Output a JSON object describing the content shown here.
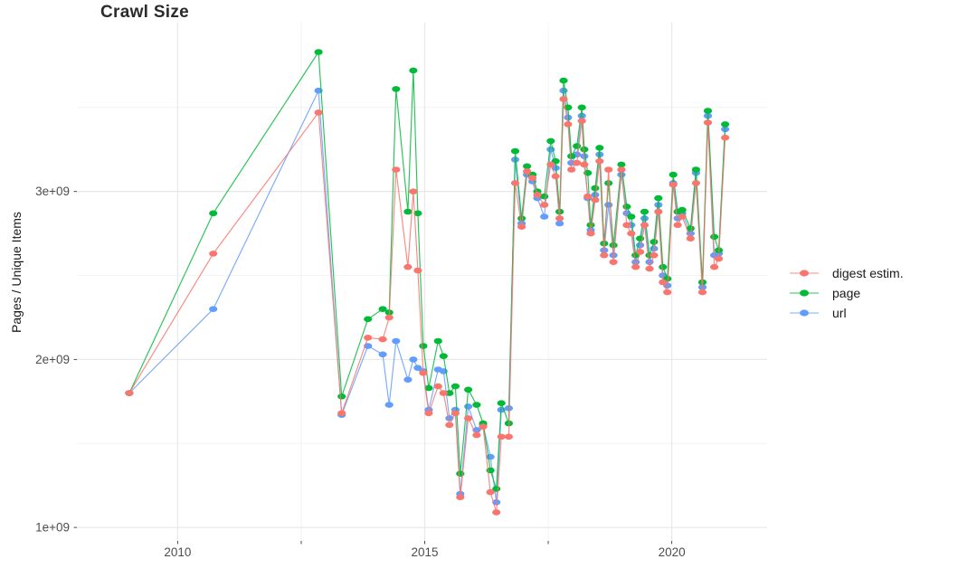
{
  "title": "Crawl Size",
  "legend": {
    "items": [
      {
        "key": "digest",
        "label": "digest estim.",
        "color": "#F8766D"
      },
      {
        "key": "page",
        "label": "page",
        "color": "#00BA38"
      },
      {
        "key": "url",
        "label": "url",
        "color": "#619CFF"
      }
    ]
  },
  "colors": {
    "digest": "#F8766D",
    "page": "#00BA38",
    "url": "#619CFF",
    "grid_major": "#e9e9e9",
    "grid_minor": "#f0f0f0",
    "tick_mark": "#4d4d4d",
    "tick_text": "#4d4d4d",
    "title_text": "#2b2b2b"
  },
  "chart_data": {
    "type": "line",
    "title": "Crawl Size",
    "xlabel": "",
    "ylabel": "Pages / Unique Items",
    "legend_position": "right",
    "grid": "on",
    "unit": "billions (value shown as Ne+09)",
    "xlim": [
      2007.96,
      2021.93
    ],
    "ylim_billions": [
      0.92,
      4.005
    ],
    "x_ticks": [
      {
        "v": 2010,
        "label": "2010"
      },
      {
        "v": 2015,
        "label": "2015"
      },
      {
        "v": 2020,
        "label": "2020"
      }
    ],
    "x_minor": [
      2012.5,
      2017.5
    ],
    "y_ticks": [
      {
        "v": 1,
        "label": "1e+09"
      },
      {
        "v": 2,
        "label": "2e+09"
      },
      {
        "v": 3,
        "label": "3e+09"
      }
    ],
    "y_minor": [
      1.5,
      2.5,
      3.5
    ],
    "draw_order": [
      "url",
      "page",
      "digest"
    ],
    "x": [
      2009.02,
      2010.72,
      2012.85,
      2013.32,
      2013.85,
      2014.15,
      2014.28,
      2014.42,
      2014.66,
      2014.77,
      2014.86,
      2014.97,
      2015.08,
      2015.27,
      2015.38,
      2015.5,
      2015.62,
      2015.72,
      2015.88,
      2016.05,
      2016.18,
      2016.33,
      2016.45,
      2016.55,
      2016.7,
      2016.83,
      2016.96,
      2017.07,
      2017.18,
      2017.28,
      2017.42,
      2017.55,
      2017.65,
      2017.73,
      2017.81,
      2017.9,
      2017.97,
      2018.08,
      2018.18,
      2018.23,
      2018.3,
      2018.36,
      2018.45,
      2018.54,
      2018.63,
      2018.72,
      2018.82,
      2018.98,
      2019.09,
      2019.18,
      2019.27,
      2019.36,
      2019.45,
      2019.55,
      2019.64,
      2019.73,
      2019.82,
      2019.91,
      2020.03,
      2020.12,
      2020.21,
      2020.38,
      2020.49,
      2020.62,
      2020.73,
      2020.86,
      2020.95,
      2021.08
    ],
    "series": [
      {
        "key": "digest",
        "name": "digest estim.",
        "color": "#F8766D",
        "values": [
          1.8,
          2.63,
          3.47,
          1.68,
          2.13,
          2.12,
          2.25,
          3.13,
          2.55,
          3.0,
          2.53,
          1.92,
          1.68,
          1.84,
          1.8,
          1.61,
          1.68,
          1.18,
          1.65,
          1.55,
          1.6,
          1.21,
          1.09,
          1.54,
          1.54,
          3.05,
          2.79,
          3.12,
          3.08,
          2.98,
          2.92,
          3.16,
          3.09,
          2.84,
          3.55,
          3.4,
          3.13,
          3.17,
          3.42,
          3.16,
          2.97,
          2.75,
          2.95,
          3.18,
          2.62,
          3.13,
          2.58,
          3.13,
          2.8,
          2.75,
          2.55,
          2.64,
          2.8,
          2.54,
          2.62,
          2.88,
          2.46,
          2.4,
          3.04,
          2.8,
          2.85,
          2.72,
          3.05,
          2.4,
          3.41,
          2.55,
          2.6,
          3.32
        ]
      },
      {
        "key": "page",
        "name": "page",
        "color": "#00BA38",
        "values": [
          1.8,
          2.87,
          3.83,
          1.78,
          2.24,
          2.3,
          2.28,
          3.61,
          2.88,
          3.72,
          2.87,
          2.08,
          1.83,
          2.11,
          2.02,
          1.8,
          1.84,
          1.32,
          1.82,
          1.73,
          1.62,
          1.34,
          1.23,
          1.74,
          1.62,
          3.24,
          2.84,
          3.15,
          3.1,
          3.0,
          2.97,
          3.3,
          3.18,
          2.88,
          3.66,
          3.5,
          3.21,
          3.27,
          3.5,
          3.25,
          3.11,
          2.8,
          3.02,
          3.26,
          2.69,
          3.05,
          2.68,
          3.16,
          2.91,
          2.85,
          2.62,
          2.72,
          2.88,
          2.62,
          2.7,
          2.96,
          2.55,
          2.48,
          3.1,
          2.88,
          2.89,
          2.78,
          3.13,
          2.46,
          3.48,
          2.73,
          2.65,
          3.4
        ]
      },
      {
        "key": "url",
        "name": "url",
        "color": "#619CFF",
        "values": [
          1.8,
          2.3,
          3.6,
          1.67,
          2.08,
          2.03,
          1.73,
          2.11,
          1.88,
          2.0,
          1.95,
          1.93,
          1.7,
          1.94,
          1.93,
          1.65,
          1.7,
          1.2,
          1.72,
          1.58,
          1.61,
          1.42,
          1.15,
          1.7,
          1.71,
          3.19,
          2.81,
          3.1,
          3.06,
          2.96,
          2.85,
          3.25,
          3.14,
          2.81,
          3.6,
          3.44,
          3.17,
          3.22,
          3.45,
          3.21,
          2.96,
          2.77,
          2.98,
          3.22,
          2.65,
          2.92,
          2.62,
          3.1,
          2.87,
          2.8,
          2.58,
          2.68,
          2.84,
          2.58,
          2.66,
          2.92,
          2.5,
          2.44,
          3.05,
          2.84,
          2.87,
          2.75,
          3.11,
          2.43,
          3.45,
          2.62,
          2.63,
          3.37
        ]
      }
    ]
  }
}
